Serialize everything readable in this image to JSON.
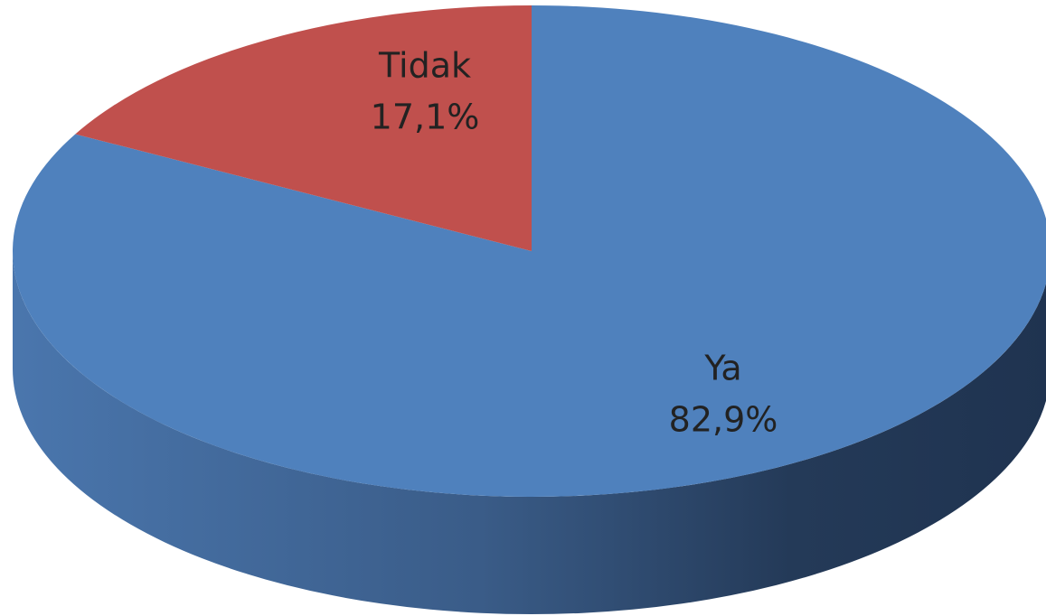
{
  "chart_data": {
    "type": "pie",
    "categories": [
      "Ya",
      "Tidak"
    ],
    "values": [
      82.9,
      17.1
    ],
    "value_labels": [
      "82,9%",
      "17,1%"
    ],
    "colors": [
      "#4f81bd",
      "#c0504d"
    ],
    "three_d": true
  }
}
